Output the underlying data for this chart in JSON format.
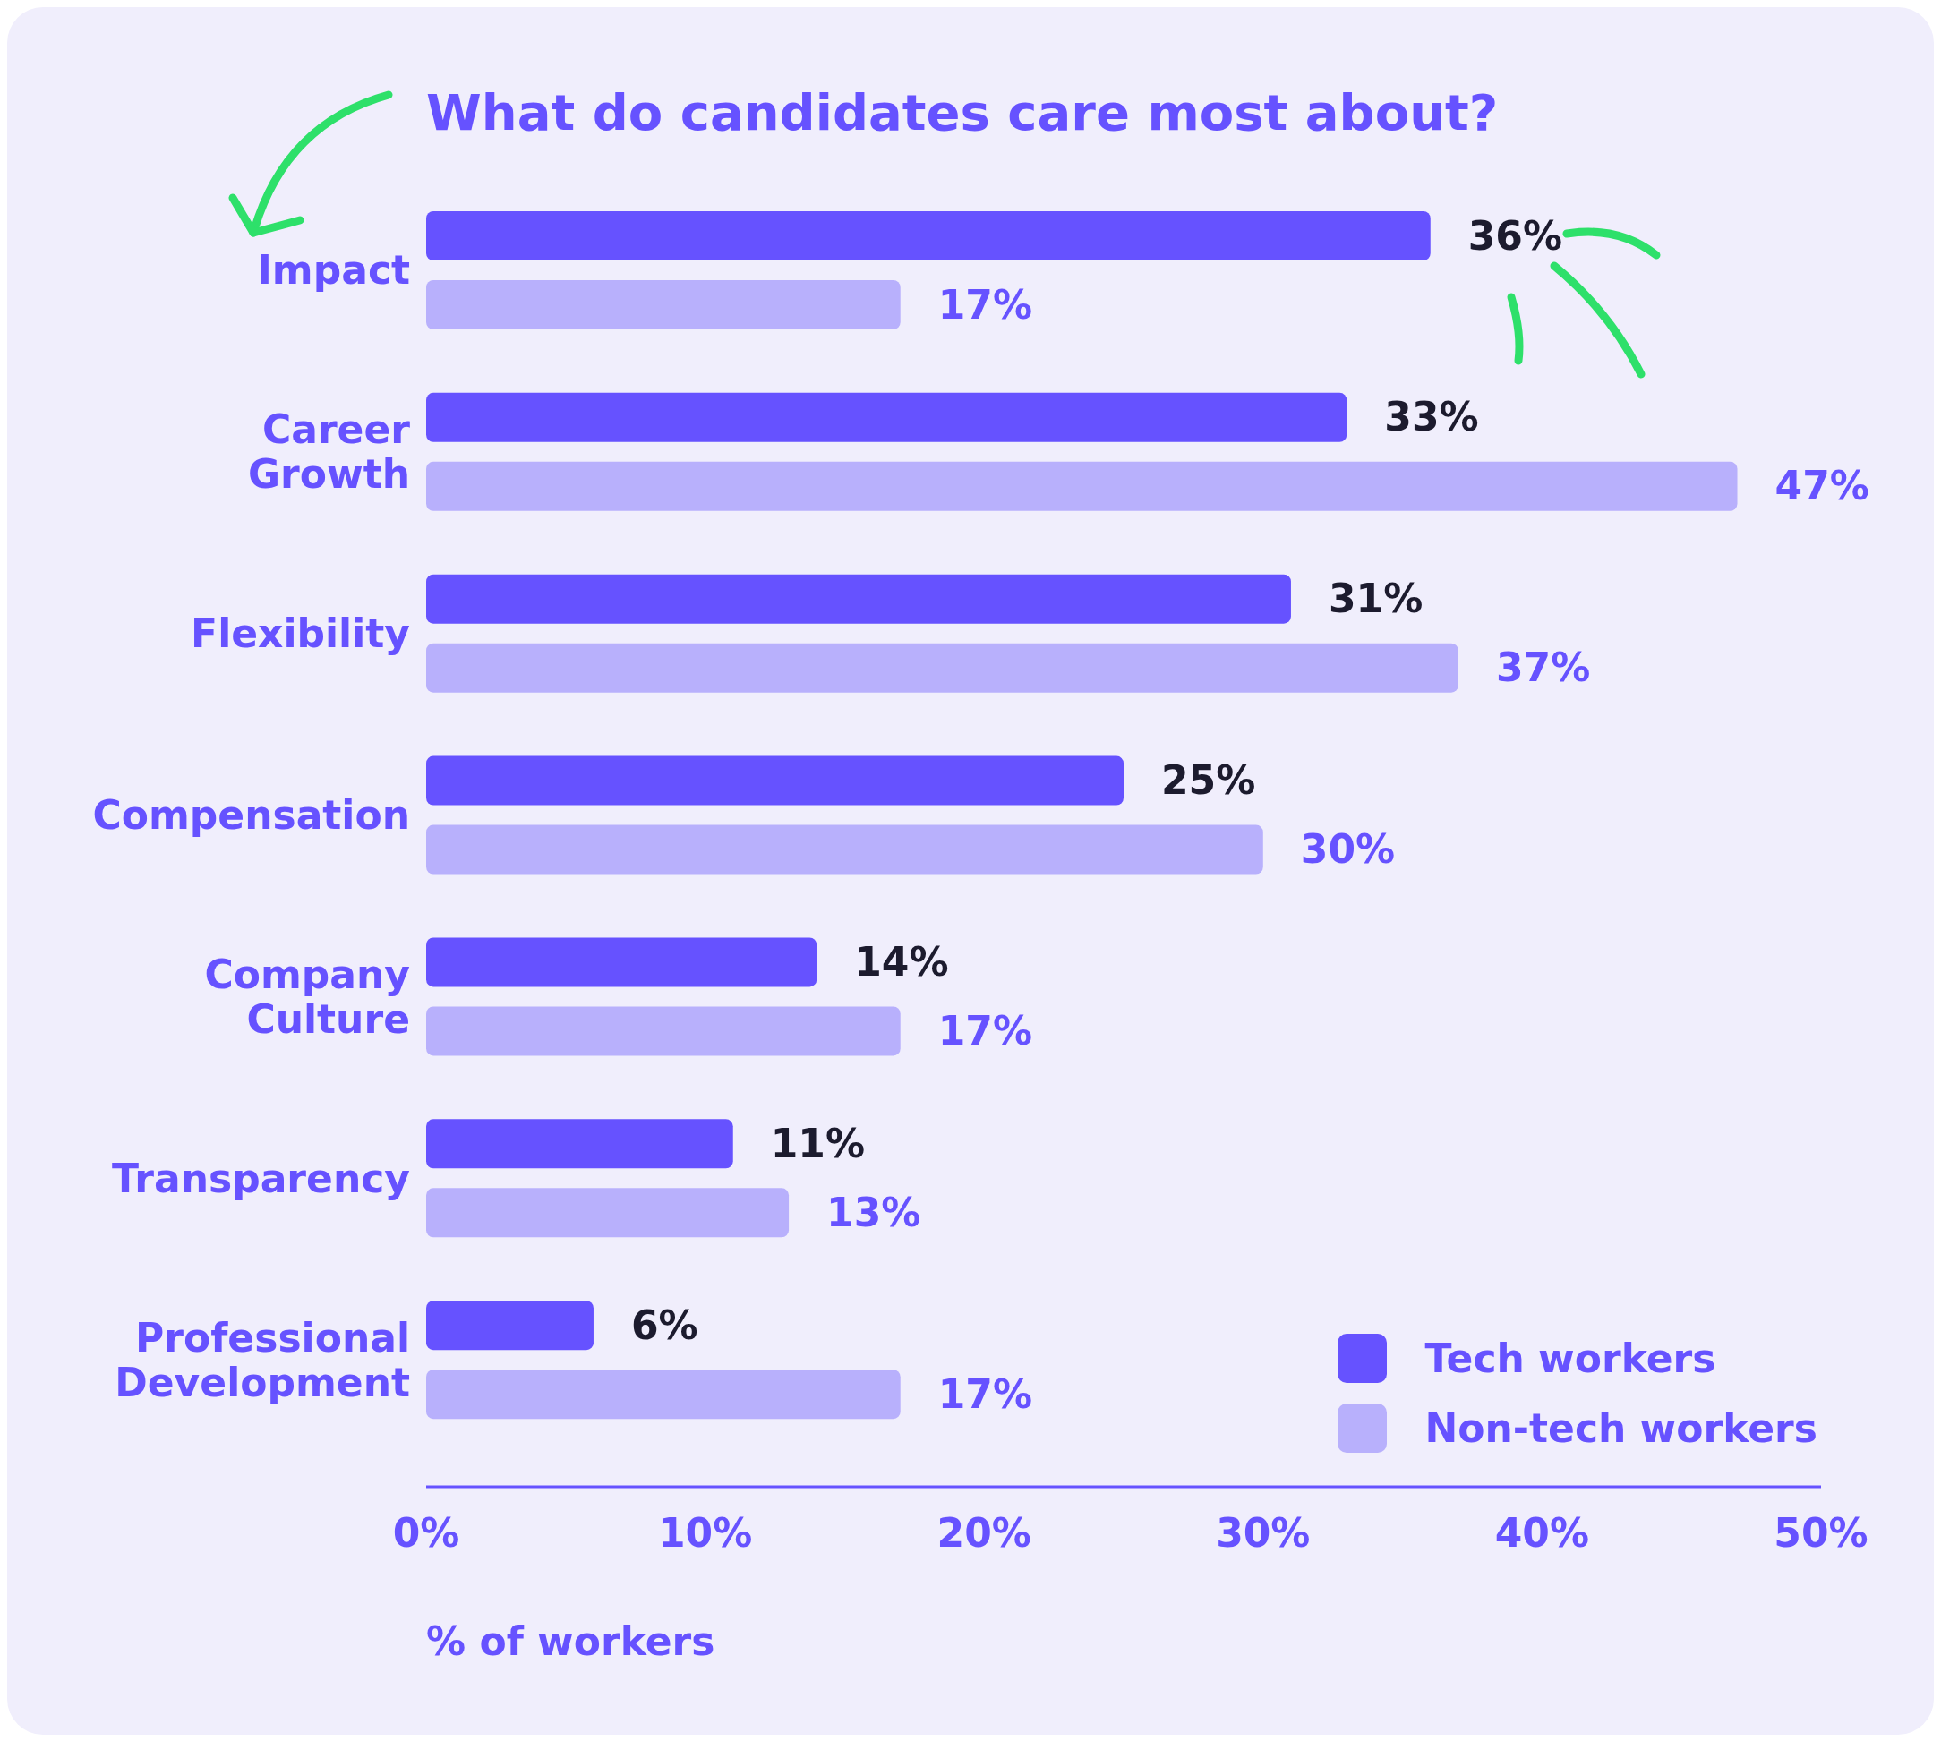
{
  "chart_data": {
    "type": "bar",
    "orientation": "horizontal",
    "title": "What do candidates care most about?",
    "xlabel": "% of workers",
    "categories": [
      "Impact",
      "Career Growth",
      "Flexibility",
      "Compensation",
      "Company Culture",
      "Transparency",
      "Professional Development"
    ],
    "series": [
      {
        "name": "Tech workers",
        "color": "#6652ff",
        "values": [
          36,
          33,
          31,
          25,
          14,
          11,
          6
        ],
        "value_labels": [
          "36%",
          "33%",
          "31%",
          "25%",
          "14%",
          "11%",
          "6%"
        ]
      },
      {
        "name": "Non-tech workers",
        "color": "#b8b0fc",
        "values": [
          17,
          47,
          37,
          30,
          17,
          13,
          17
        ],
        "value_labels": [
          "17%",
          "47%",
          "37%",
          "30%",
          "17%",
          "13%",
          "17%"
        ]
      }
    ],
    "xlim": [
      0,
      50
    ],
    "xticks": [
      {
        "value": 0,
        "label": "0%"
      },
      {
        "value": 10,
        "label": "10%"
      },
      {
        "value": 20,
        "label": "20%"
      },
      {
        "value": 30,
        "label": "30%"
      },
      {
        "value": 40,
        "label": "40%"
      },
      {
        "value": 50,
        "label": "50%"
      }
    ],
    "legend": "bottom right"
  }
}
